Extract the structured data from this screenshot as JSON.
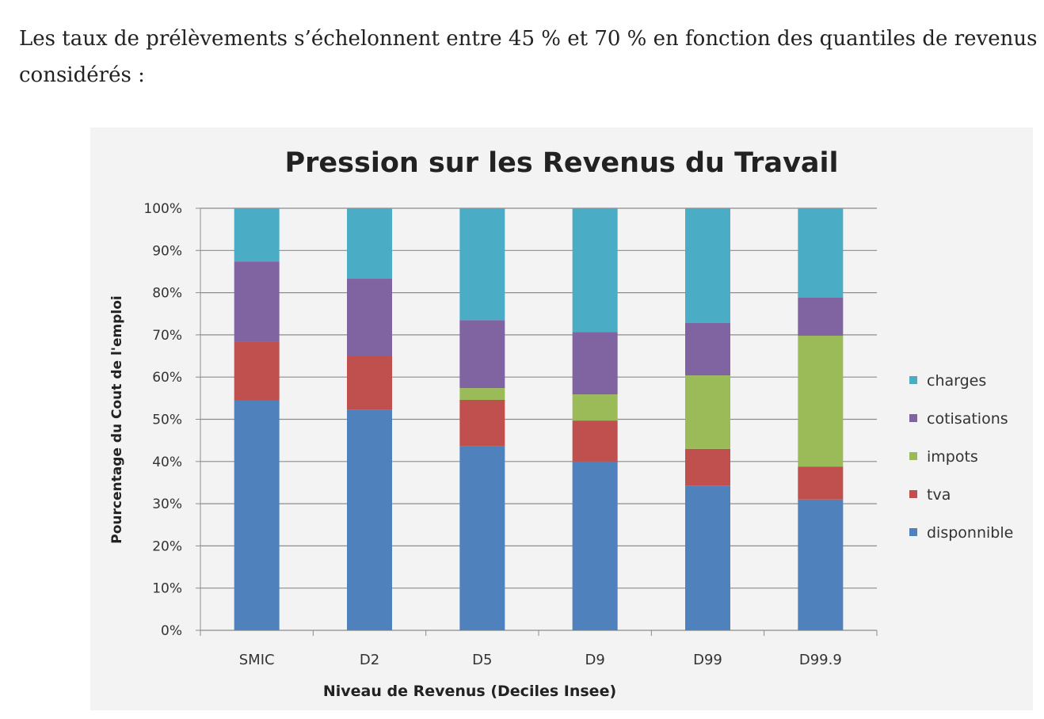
{
  "paragraph": {
    "line1": "Les taux de prélèvements s’échelonnent entre 45 % et 70 % en fonction des quantiles de revenus",
    "line2": "considérés :"
  },
  "chart_data": {
    "type": "bar",
    "stacked": true,
    "percent_stacked": true,
    "title": "Pression sur les Revenus du Travail",
    "xlabel": "Niveau de Revenus (Deciles Insee)",
    "ylabel": "Pourcentage du Cout de l'emploi",
    "ylim": [
      0,
      100
    ],
    "yticks": [
      "0%",
      "10%",
      "20%",
      "30%",
      "40%",
      "50%",
      "60%",
      "70%",
      "80%",
      "90%",
      "100%"
    ],
    "grid": true,
    "legend_position": "right",
    "categories": [
      "SMIC",
      "D2",
      "D5",
      "D9",
      "D99",
      "D99.9"
    ],
    "series": [
      {
        "name": "disponnible",
        "color": "#4f81bd",
        "values": [
          54.5,
          52.2,
          43.7,
          40.0,
          34.3,
          31.0
        ]
      },
      {
        "name": "tva",
        "color": "#c0504d",
        "values": [
          13.8,
          12.9,
          10.9,
          9.7,
          8.7,
          7.8
        ]
      },
      {
        "name": "impots",
        "color": "#9bbb59",
        "values": [
          0,
          0,
          2.8,
          6.2,
          17.4,
          31.0
        ]
      },
      {
        "name": "cotisations",
        "color": "#8064a2",
        "values": [
          19.1,
          18.2,
          16.1,
          14.8,
          12.4,
          9.0
        ]
      },
      {
        "name": "charges",
        "color": "#4bacc6",
        "values": [
          12.6,
          16.7,
          26.5,
          29.3,
          27.2,
          21.2
        ]
      }
    ]
  }
}
